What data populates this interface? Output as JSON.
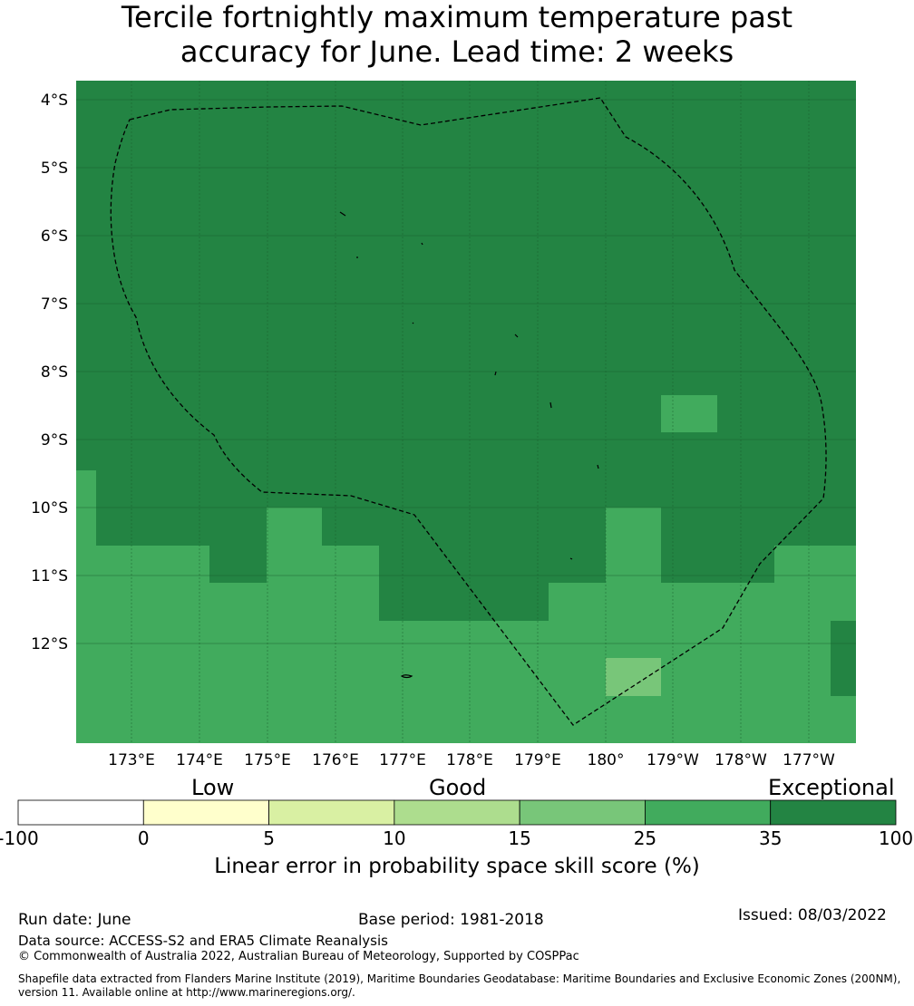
{
  "title_lines": [
    "Tercile fortnightly maximum temperature past",
    "accuracy for June. Lead time: 2 weeks"
  ],
  "map": {
    "lat_ticks": [
      "4°S",
      "5°S",
      "6°S",
      "7°S",
      "8°S",
      "9°S",
      "10°S",
      "11°S",
      "12°S"
    ],
    "lon_ticks": [
      "173°E",
      "174°E",
      "175°E",
      "176°E",
      "177°E",
      "178°E",
      "179°E",
      "180°",
      "179°W",
      "178°W",
      "177°W"
    ],
    "colors": {
      "exceptional": "#238443",
      "band_25_35": "#41ab5d",
      "band_15_25": "#78c679"
    }
  },
  "colorbar": {
    "category_labels": [
      "Low",
      "Good",
      "Exceptional"
    ],
    "tick_labels": [
      "-100",
      "0",
      "5",
      "10",
      "15",
      "25",
      "35",
      "100"
    ],
    "colors": [
      "#ffffff",
      "#ffffcc",
      "#d9f0a3",
      "#addd8e",
      "#78c679",
      "#41ab5d",
      "#238443"
    ],
    "title": "Linear error in probability space skill score (%)"
  },
  "footer": {
    "run_date": "Run date: June",
    "base_period": "Base period: 1981-2018",
    "issued": "Issued: 08/03/2022",
    "data_source": "Data source: ACCESS-S2 and ERA5 Climate Reanalysis",
    "copyright": "© Commonwealth of Australia 2022, Australian Bureau of Meteorology, Supported by COSPPac",
    "shapefile_line1": "Shapefile data extracted from Flanders Marine Institute (2019), Maritime Boundaries Geodatabase: Maritime Boundaries and Exclusive Economic Zones (200NM),",
    "shapefile_line2": "version 11. Available online at http://www.marineregions.org/."
  }
}
